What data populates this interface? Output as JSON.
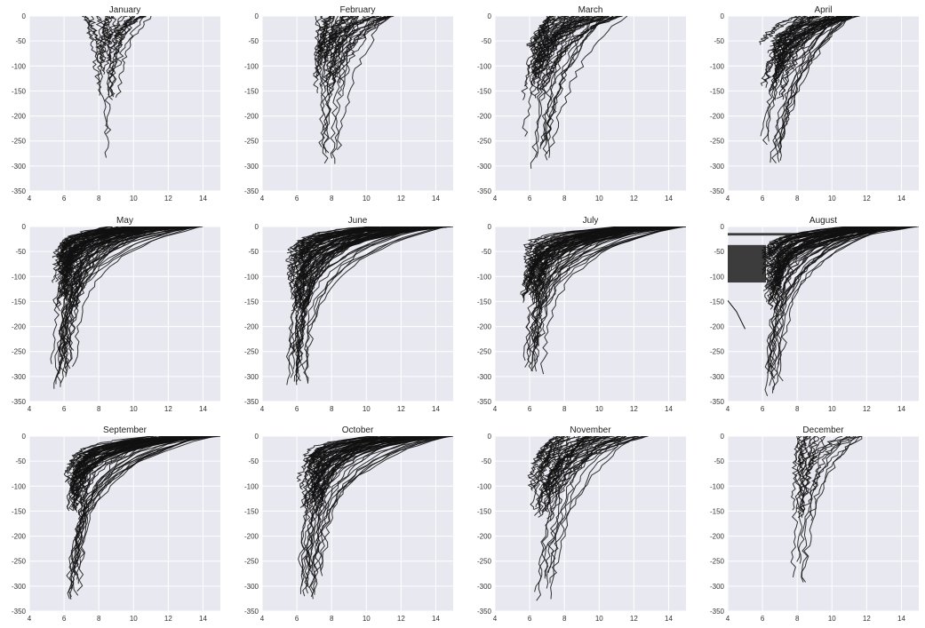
{
  "colors": {
    "plot_background": "#e8e8f0",
    "grid": "#ffffff",
    "profile_line": "#111111"
  },
  "chart_data": [
    {
      "type": "line",
      "title": "January",
      "xlim": [
        4,
        15
      ],
      "ylim": [
        -350,
        0
      ],
      "x_ticks": [
        4,
        6,
        8,
        10,
        12,
        14
      ],
      "y_ticks": [
        0,
        -50,
        -100,
        -150,
        -200,
        -250,
        -300,
        -350
      ],
      "grid": true,
      "profile_envelope": {
        "surface_x_range": [
          7.0,
          11.2
        ],
        "deepest_depth": -290,
        "deep_x": 8.5,
        "curve_count": 25
      }
    },
    {
      "type": "line",
      "title": "February",
      "xlim": [
        4,
        15
      ],
      "ylim": [
        -350,
        0
      ],
      "x_ticks": [
        4,
        6,
        8,
        10,
        12,
        14
      ],
      "y_ticks": [
        0,
        -50,
        -100,
        -150,
        -200,
        -250,
        -300,
        -350
      ],
      "grid": true,
      "profile_envelope": {
        "surface_x_range": [
          7.0,
          11.5
        ],
        "deepest_depth": -300,
        "deep_x": 7.5,
        "curve_count": 45
      }
    },
    {
      "type": "line",
      "title": "March",
      "xlim": [
        4,
        15
      ],
      "ylim": [
        -350,
        0
      ],
      "x_ticks": [
        4,
        6,
        8,
        10,
        12,
        14
      ],
      "y_ticks": [
        0,
        -50,
        -100,
        -150,
        -200,
        -250,
        -300,
        -350
      ],
      "grid": true,
      "profile_envelope": {
        "surface_x_range": [
          7.0,
          11.5
        ],
        "deepest_depth": -320,
        "deep_x": 6.1,
        "curve_count": 55
      }
    },
    {
      "type": "line",
      "title": "April",
      "xlim": [
        4,
        15
      ],
      "ylim": [
        -350,
        0
      ],
      "x_ticks": [
        4,
        6,
        8,
        10,
        12,
        14
      ],
      "y_ticks": [
        0,
        -50,
        -100,
        -150,
        -200,
        -250,
        -300,
        -350
      ],
      "grid": true,
      "profile_envelope": {
        "surface_x_range": [
          8.0,
          11.5
        ],
        "deepest_depth": -310,
        "deep_x": 6.1,
        "curve_count": 60
      }
    },
    {
      "type": "line",
      "title": "May",
      "xlim": [
        4,
        15
      ],
      "ylim": [
        -350,
        0
      ],
      "x_ticks": [
        4,
        6,
        8,
        10,
        12,
        14
      ],
      "y_ticks": [
        0,
        -50,
        -100,
        -150,
        -200,
        -250,
        -300,
        -350
      ],
      "grid": true,
      "profile_envelope": {
        "surface_x_range": [
          8.5,
          14.0
        ],
        "deepest_depth": -330,
        "deep_x": 6.0,
        "curve_count": 90
      }
    },
    {
      "type": "line",
      "title": "June",
      "xlim": [
        4,
        15
      ],
      "ylim": [
        -350,
        0
      ],
      "x_ticks": [
        4,
        6,
        8,
        10,
        12,
        14
      ],
      "y_ticks": [
        0,
        -50,
        -100,
        -150,
        -200,
        -250,
        -300,
        -350
      ],
      "grid": true,
      "profile_envelope": {
        "surface_x_range": [
          10.0,
          15.0
        ],
        "deepest_depth": -325,
        "deep_x": 6.0,
        "curve_count": 80
      }
    },
    {
      "type": "line",
      "title": "July",
      "xlim": [
        4,
        15
      ],
      "ylim": [
        -350,
        0
      ],
      "x_ticks": [
        4,
        6,
        8,
        10,
        12,
        14
      ],
      "y_ticks": [
        0,
        -50,
        -100,
        -150,
        -200,
        -250,
        -300,
        -350
      ],
      "grid": true,
      "profile_envelope": {
        "surface_x_range": [
          11.0,
          15.0
        ],
        "deepest_depth": -300,
        "deep_x": 6.1,
        "curve_count": 75
      }
    },
    {
      "type": "line",
      "title": "August",
      "xlim": [
        4,
        15
      ],
      "ylim": [
        -350,
        0
      ],
      "x_ticks": [
        4,
        6,
        8,
        10,
        12,
        14
      ],
      "y_ticks": [
        0,
        -50,
        -100,
        -150,
        -200,
        -250,
        -300,
        -350
      ],
      "grid": true,
      "profile_envelope": {
        "surface_x_range": [
          11.0,
          15.0
        ],
        "deepest_depth": -350,
        "deep_x": 6.5,
        "curve_count": 75
      },
      "artifact_bands": [
        {
          "x_range": [
            4,
            8
          ],
          "y_range": [
            -13,
            -18
          ]
        },
        {
          "x_range": [
            4,
            6.2
          ],
          "y_range": [
            -37,
            -112
          ]
        }
      ],
      "stray_line": {
        "x": [
          4.0,
          4.5,
          5.0
        ],
        "y": [
          -148,
          -170,
          -205
        ]
      }
    },
    {
      "type": "line",
      "title": "September",
      "xlim": [
        4,
        15
      ],
      "ylim": [
        -350,
        0
      ],
      "x_ticks": [
        4,
        6,
        8,
        10,
        12,
        14
      ],
      "y_ticks": [
        0,
        -50,
        -100,
        -150,
        -200,
        -250,
        -300,
        -350
      ],
      "grid": true,
      "profile_envelope": {
        "surface_x_range": [
          11.0,
          15.0
        ],
        "deepest_depth": -335,
        "deep_x": 6.6,
        "curve_count": 70
      }
    },
    {
      "type": "line",
      "title": "October",
      "xlim": [
        4,
        15
      ],
      "ylim": [
        -350,
        0
      ],
      "x_ticks": [
        4,
        6,
        8,
        10,
        12,
        14
      ],
      "y_ticks": [
        0,
        -50,
        -100,
        -150,
        -200,
        -250,
        -300,
        -350
      ],
      "grid": true,
      "profile_envelope": {
        "surface_x_range": [
          10.0,
          15.0
        ],
        "deepest_depth": -330,
        "deep_x": 6.8,
        "curve_count": 70
      }
    },
    {
      "type": "line",
      "title": "November",
      "xlim": [
        4,
        15
      ],
      "ylim": [
        -350,
        0
      ],
      "x_ticks": [
        4,
        6,
        8,
        10,
        12,
        14
      ],
      "y_ticks": [
        0,
        -50,
        -100,
        -150,
        -200,
        -250,
        -300,
        -350
      ],
      "grid": true,
      "profile_envelope": {
        "surface_x_range": [
          7.5,
          12.8
        ],
        "deepest_depth": -340,
        "deep_x": 6.4,
        "curve_count": 55
      }
    },
    {
      "type": "line",
      "title": "December",
      "xlim": [
        4,
        15
      ],
      "ylim": [
        -350,
        0
      ],
      "x_ticks": [
        4,
        6,
        8,
        10,
        12,
        14
      ],
      "y_ticks": [
        0,
        -50,
        -100,
        -150,
        -200,
        -250,
        -300,
        -350
      ],
      "grid": true,
      "profile_envelope": {
        "surface_x_range": [
          8.0,
          12.0
        ],
        "deepest_depth": -300,
        "deep_x": 8.1,
        "curve_count": 22
      }
    }
  ]
}
